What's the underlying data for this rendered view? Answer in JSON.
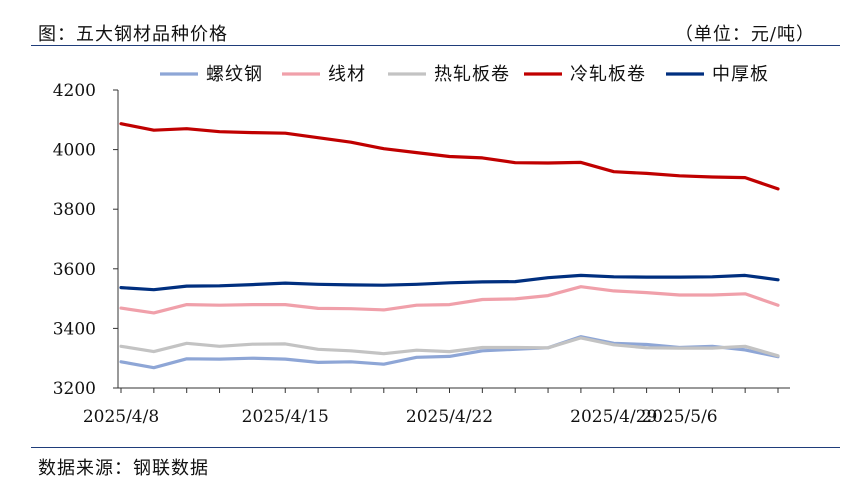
{
  "header": {
    "title": "图：五大钢材品种价格",
    "unit": "（单位：元/吨）"
  },
  "footer": {
    "source": "数据来源：钢联数据"
  },
  "chart_data": {
    "type": "line",
    "title": "五大钢材品种价格",
    "ylabel": "元/吨",
    "ylim": [
      3200,
      4200
    ],
    "yticks": [
      3200,
      3400,
      3600,
      3800,
      4000,
      4200
    ],
    "x": [
      "2025/4/8",
      "2025/4/9",
      "2025/4/10",
      "2025/4/11",
      "2025/4/14",
      "2025/4/15",
      "2025/4/16",
      "2025/4/17",
      "2025/4/18",
      "2025/4/21",
      "2025/4/22",
      "2025/4/23",
      "2025/4/24",
      "2025/4/25",
      "2025/4/28",
      "2025/4/29",
      "2025/4/30",
      "2025/5/6",
      "2025/5/7",
      "2025/5/8",
      "2025/5/9"
    ],
    "xticks": [
      "2025/4/8",
      "2025/4/15",
      "2025/4/22",
      "2025/4/29",
      "2025/5/6"
    ],
    "legend_position": "top",
    "series": [
      {
        "name": "螺纹钢",
        "color": "#8ea6d6",
        "values": [
          3288,
          3268,
          3298,
          3297,
          3300,
          3297,
          3286,
          3288,
          3280,
          3303,
          3306,
          3325,
          3330,
          3335,
          3372,
          3350,
          3346,
          3336,
          3340,
          3328,
          3305
        ]
      },
      {
        "name": "线材",
        "color": "#f0a0aa",
        "values": [
          3468,
          3452,
          3480,
          3478,
          3480,
          3480,
          3467,
          3466,
          3462,
          3478,
          3480,
          3497,
          3499,
          3510,
          3540,
          3526,
          3520,
          3512,
          3512,
          3516,
          3478
        ]
      },
      {
        "name": "热轧板卷",
        "color": "#c3c3c3",
        "values": [
          3340,
          3322,
          3350,
          3340,
          3347,
          3348,
          3330,
          3325,
          3315,
          3327,
          3322,
          3336,
          3336,
          3335,
          3368,
          3345,
          3335,
          3334,
          3334,
          3340,
          3308
        ]
      },
      {
        "name": "冷轧板卷",
        "color": "#c00000",
        "values": [
          4087,
          4065,
          4070,
          4060,
          4057,
          4055,
          4040,
          4025,
          4003,
          3990,
          3977,
          3972,
          3956,
          3955,
          3957,
          3926,
          3920,
          3912,
          3908,
          3906,
          3868
        ]
      },
      {
        "name": "中厚板",
        "color": "#002f7f",
        "values": [
          3537,
          3530,
          3542,
          3543,
          3547,
          3552,
          3548,
          3546,
          3545,
          3548,
          3553,
          3556,
          3557,
          3570,
          3578,
          3573,
          3572,
          3572,
          3573,
          3578,
          3563
        ]
      }
    ]
  }
}
